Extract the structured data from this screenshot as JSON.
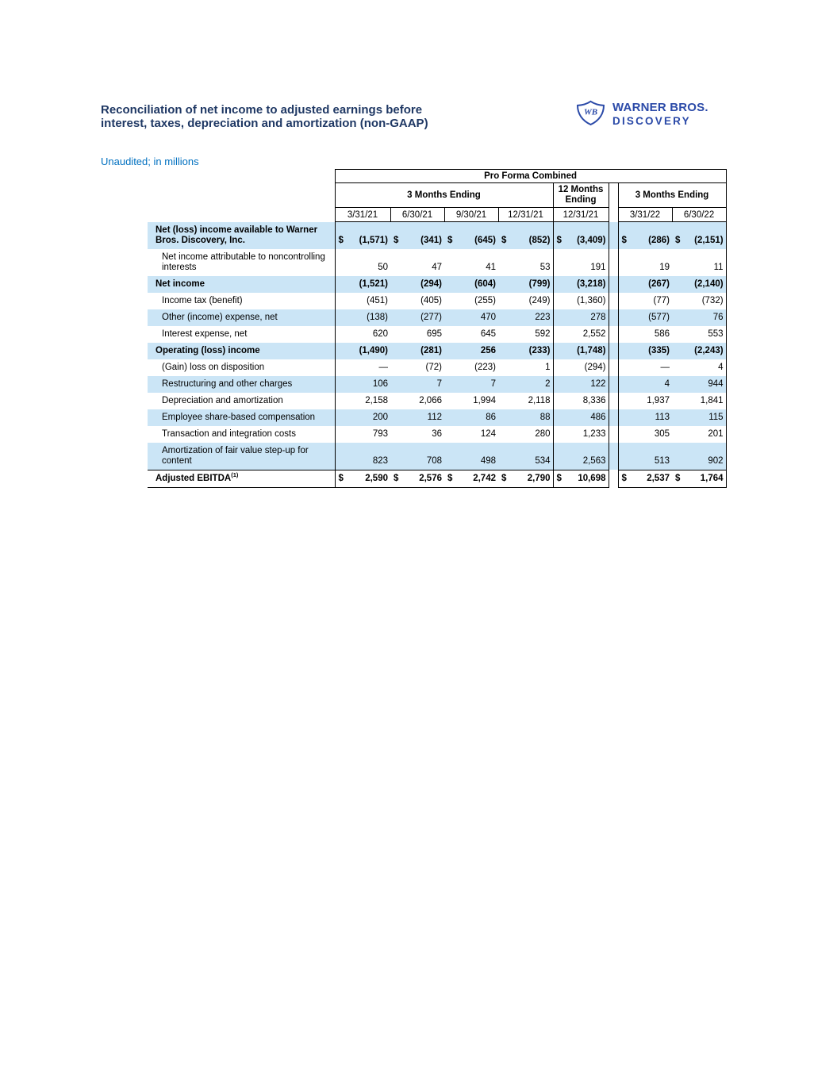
{
  "page": {
    "title": "Reconciliation of net income to adjusted earnings before interest, taxes, depreciation and amortization (non-GAAP)",
    "subtitle": "Unaudited; in millions"
  },
  "logo": {
    "monogram": "WB",
    "name_line1": "WARNER BROS.",
    "name_line2": "DISCOVERY"
  },
  "colors": {
    "title": "#1F3864",
    "subtitle": "#0070C0",
    "logo": "#2B4AA8",
    "highlight": "#CBE5F6",
    "border": "#000000"
  },
  "table": {
    "group_header": "Pro Forma Combined",
    "col_groups": [
      {
        "label": "3 Months Ending",
        "span": 4
      },
      {
        "label": "12 Months Ending",
        "span": 1
      },
      {
        "label": "3 Months Ending",
        "span": 2
      }
    ],
    "columns": [
      "3/31/21",
      "6/30/21",
      "9/30/21",
      "12/31/21",
      "12/31/21",
      "3/31/22",
      "6/30/22"
    ],
    "rows": [
      {
        "label": "Net (loss) income available to Warner Bros. Discovery, Inc.",
        "bold": true,
        "highlight": true,
        "dollar": true,
        "indent": false,
        "values": [
          "(1,571)",
          "(341)",
          "(645)",
          "(852)",
          "(3,409)",
          "(286)",
          "(2,151)"
        ]
      },
      {
        "label": "Net income attributable to noncontrolling interests",
        "bold": false,
        "highlight": false,
        "dollar": false,
        "indent": true,
        "values": [
          "50",
          "47",
          "41",
          "53",
          "191",
          "19",
          "11"
        ]
      },
      {
        "label": "Net income",
        "bold": true,
        "highlight": true,
        "dollar": false,
        "indent": false,
        "values": [
          "(1,521)",
          "(294)",
          "(604)",
          "(799)",
          "(3,218)",
          "(267)",
          "(2,140)"
        ]
      },
      {
        "label": "Income tax (benefit)",
        "bold": false,
        "highlight": false,
        "dollar": false,
        "indent": true,
        "values": [
          "(451)",
          "(405)",
          "(255)",
          "(249)",
          "(1,360)",
          "(77)",
          "(732)"
        ]
      },
      {
        "label": "Other (income) expense, net",
        "bold": false,
        "highlight": true,
        "dollar": false,
        "indent": true,
        "values": [
          "(138)",
          "(277)",
          "470",
          "223",
          "278",
          "(577)",
          "76"
        ]
      },
      {
        "label": "Interest expense, net",
        "bold": false,
        "highlight": false,
        "dollar": false,
        "indent": true,
        "values": [
          "620",
          "695",
          "645",
          "592",
          "2,552",
          "586",
          "553"
        ]
      },
      {
        "label": "Operating (loss) income",
        "bold": true,
        "highlight": true,
        "dollar": false,
        "indent": false,
        "values": [
          "(1,490)",
          "(281)",
          "256",
          "(233)",
          "(1,748)",
          "(335)",
          "(2,243)"
        ]
      },
      {
        "label": "(Gain) loss on disposition",
        "bold": false,
        "highlight": false,
        "dollar": false,
        "indent": true,
        "values": [
          "—",
          "(72)",
          "(223)",
          "1",
          "(294)",
          "—",
          "4"
        ]
      },
      {
        "label": "Restructuring and other charges",
        "bold": false,
        "highlight": true,
        "dollar": false,
        "indent": true,
        "values": [
          "106",
          "7",
          "7",
          "2",
          "122",
          "4",
          "944"
        ]
      },
      {
        "label": "Depreciation and amortization",
        "bold": false,
        "highlight": false,
        "dollar": false,
        "indent": true,
        "values": [
          "2,158",
          "2,066",
          "1,994",
          "2,118",
          "8,336",
          "1,937",
          "1,841"
        ]
      },
      {
        "label": "Employee share-based compensation",
        "bold": false,
        "highlight": true,
        "dollar": false,
        "indent": true,
        "values": [
          "200",
          "112",
          "86",
          "88",
          "486",
          "113",
          "115"
        ]
      },
      {
        "label": "Transaction and integration costs",
        "bold": false,
        "highlight": false,
        "dollar": false,
        "indent": true,
        "values": [
          "793",
          "36",
          "124",
          "280",
          "1,233",
          "305",
          "201"
        ]
      },
      {
        "label": "Amortization of fair value step-up for content",
        "bold": false,
        "highlight": true,
        "dollar": false,
        "indent": true,
        "values": [
          "823",
          "708",
          "498",
          "534",
          "2,563",
          "513",
          "902"
        ]
      },
      {
        "label": "Adjusted EBITDA",
        "sup": "(1)",
        "bold": true,
        "highlight": false,
        "dollar": true,
        "indent": false,
        "total": true,
        "values": [
          "2,590",
          "2,576",
          "2,742",
          "2,790",
          "10,698",
          "2,537",
          "1,764"
        ]
      }
    ]
  }
}
